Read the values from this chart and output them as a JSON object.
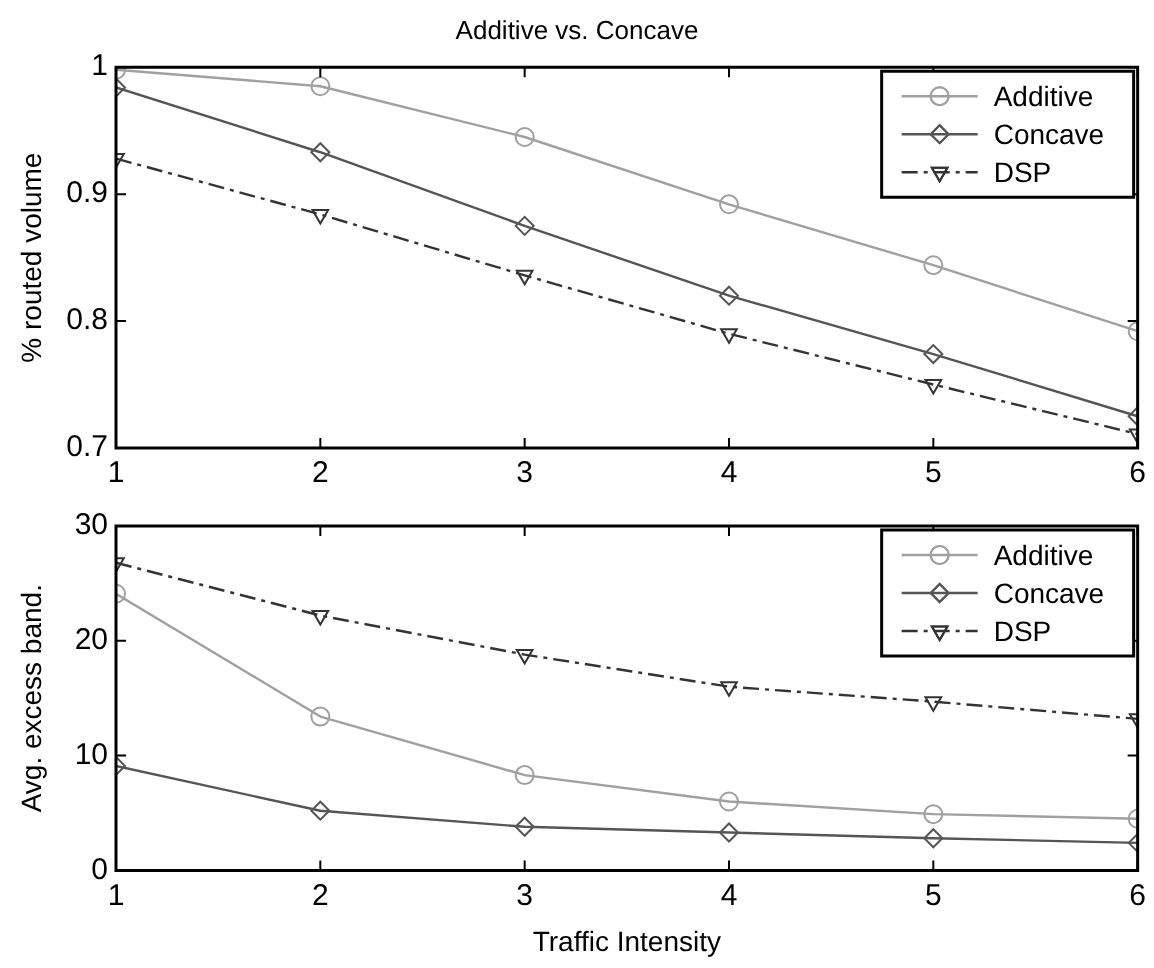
{
  "chart_data": [
    {
      "type": "line",
      "title": "Additive vs. Concave",
      "ylabel": "% routed volume",
      "x": [
        1,
        2,
        3,
        4,
        5,
        6
      ],
      "xlim": [
        1,
        6
      ],
      "xticks": [
        1,
        2,
        3,
        4,
        5,
        6
      ],
      "ylim": [
        0.7,
        1
      ],
      "yticks": [
        0.7,
        0.8,
        0.9,
        {
          "value": 1,
          "label": "1"
        }
      ],
      "grid": false,
      "legend": "top right",
      "series": [
        {
          "name": "Additive",
          "color": "#a0a0a0",
          "marker": "circle",
          "line_style": "solid",
          "values": [
            0.998,
            0.985,
            0.945,
            0.892,
            0.844,
            0.792
          ]
        },
        {
          "name": "Concave",
          "color": "#555555",
          "marker": "diamond",
          "line_style": "solid",
          "values": [
            0.984,
            0.933,
            0.875,
            0.82,
            0.774,
            0.725
          ]
        },
        {
          "name": "DSP",
          "color": "#333333",
          "marker": "triangle",
          "line_style": "dashed",
          "values": [
            0.928,
            0.884,
            0.836,
            0.79,
            0.75,
            0.711
          ]
        }
      ]
    },
    {
      "type": "line",
      "xlabel": "Traffic Intensity",
      "ylabel": "Avg. excess band.",
      "x": [
        1,
        2,
        3,
        4,
        5,
        6
      ],
      "xlim": [
        1,
        6
      ],
      "xticks": [
        1,
        2,
        3,
        4,
        5,
        6
      ],
      "ylim": [
        0,
        30
      ],
      "yticks": [
        0,
        10,
        20,
        30
      ],
      "grid": false,
      "legend": "top right",
      "series": [
        {
          "name": "Additive",
          "color": "#a0a0a0",
          "marker": "circle",
          "line_style": "solid",
          "values": [
            24.1,
            13.4,
            8.3,
            6.0,
            4.9,
            4.5
          ]
        },
        {
          "name": "Concave",
          "color": "#555555",
          "marker": "diamond",
          "line_style": "solid",
          "values": [
            9.1,
            5.2,
            3.8,
            3.3,
            2.8,
            2.4
          ]
        },
        {
          "name": "DSP",
          "color": "#333333",
          "marker": "triangle",
          "line_style": "dashed",
          "values": [
            26.8,
            22.2,
            18.8,
            16.0,
            14.7,
            13.2
          ]
        }
      ]
    }
  ]
}
